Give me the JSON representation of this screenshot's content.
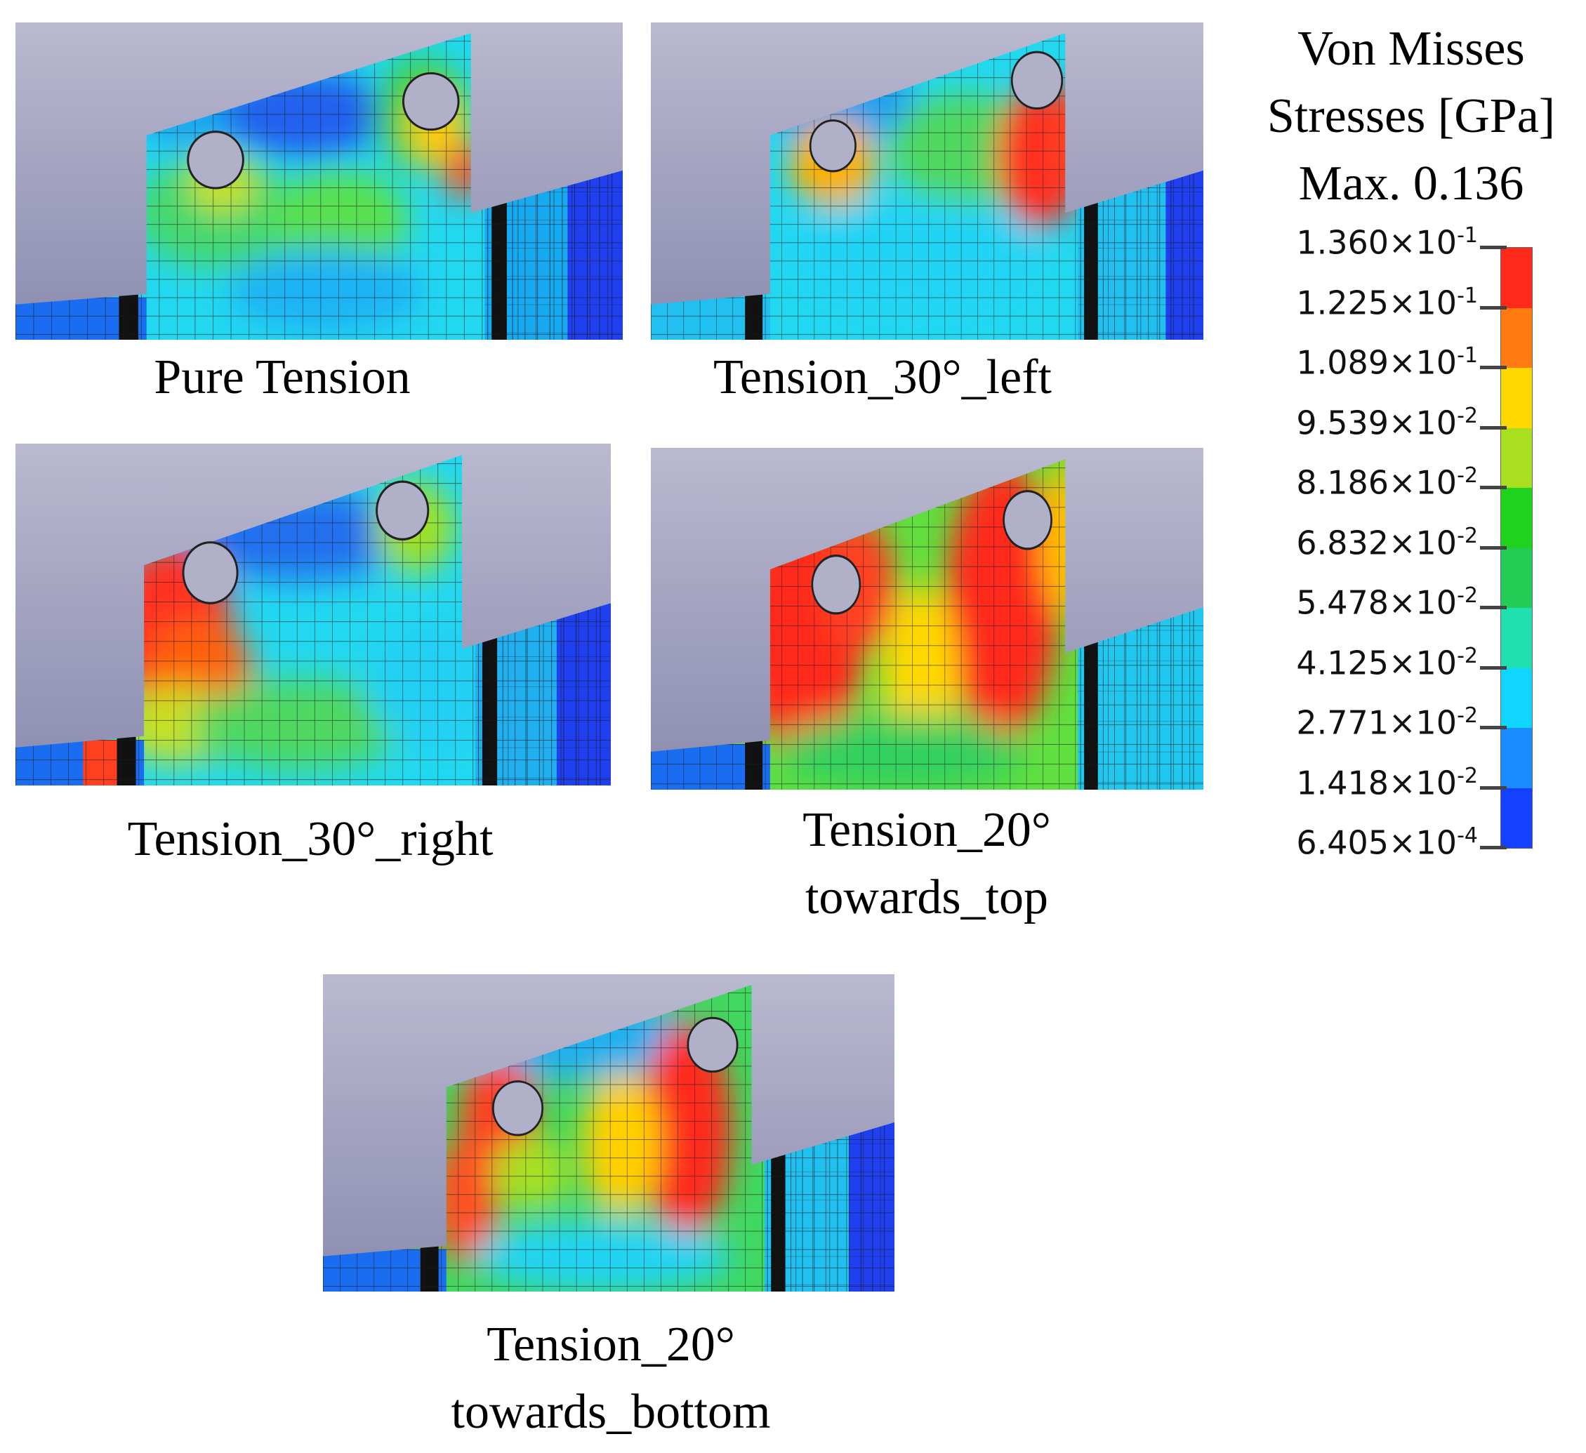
{
  "figure": {
    "panels": [
      {
        "caption_lines": [
          "Pure Tension"
        ],
        "stress_level": "low"
      },
      {
        "caption_lines": [
          "Tension_30°_left"
        ],
        "stress_level": "right-hole"
      },
      {
        "caption_lines": [
          "Tension_30°_right"
        ],
        "stress_level": "left-hole"
      },
      {
        "caption_lines": [
          "Tension_20°",
          "towards_top"
        ],
        "stress_level": "high"
      },
      {
        "caption_lines": [
          "Tension_20°",
          "towards_bottom"
        ],
        "stress_level": "medium-high"
      }
    ]
  },
  "legend": {
    "title_lines": [
      "Von Misses",
      "Stresses [GPa]",
      "Max. 0.136"
    ],
    "ticks": [
      {
        "mantissa": "1.360",
        "exponent": "-1"
      },
      {
        "mantissa": "1.225",
        "exponent": "-1"
      },
      {
        "mantissa": "1.089",
        "exponent": "-1"
      },
      {
        "mantissa": "9.539",
        "exponent": "-2"
      },
      {
        "mantissa": "8.186",
        "exponent": "-2"
      },
      {
        "mantissa": "6.832",
        "exponent": "-2"
      },
      {
        "mantissa": "5.478",
        "exponent": "-2"
      },
      {
        "mantissa": "4.125",
        "exponent": "-2"
      },
      {
        "mantissa": "2.771",
        "exponent": "-2"
      },
      {
        "mantissa": "1.418",
        "exponent": "-2"
      },
      {
        "mantissa": "6.405",
        "exponent": "-4"
      }
    ],
    "colors": [
      "#ff2a1a",
      "#ff7a10",
      "#ffd800",
      "#a8e020",
      "#1ed21e",
      "#22cc55",
      "#20e0b0",
      "#10d6ff",
      "#1a8cff",
      "#1440ff"
    ]
  }
}
